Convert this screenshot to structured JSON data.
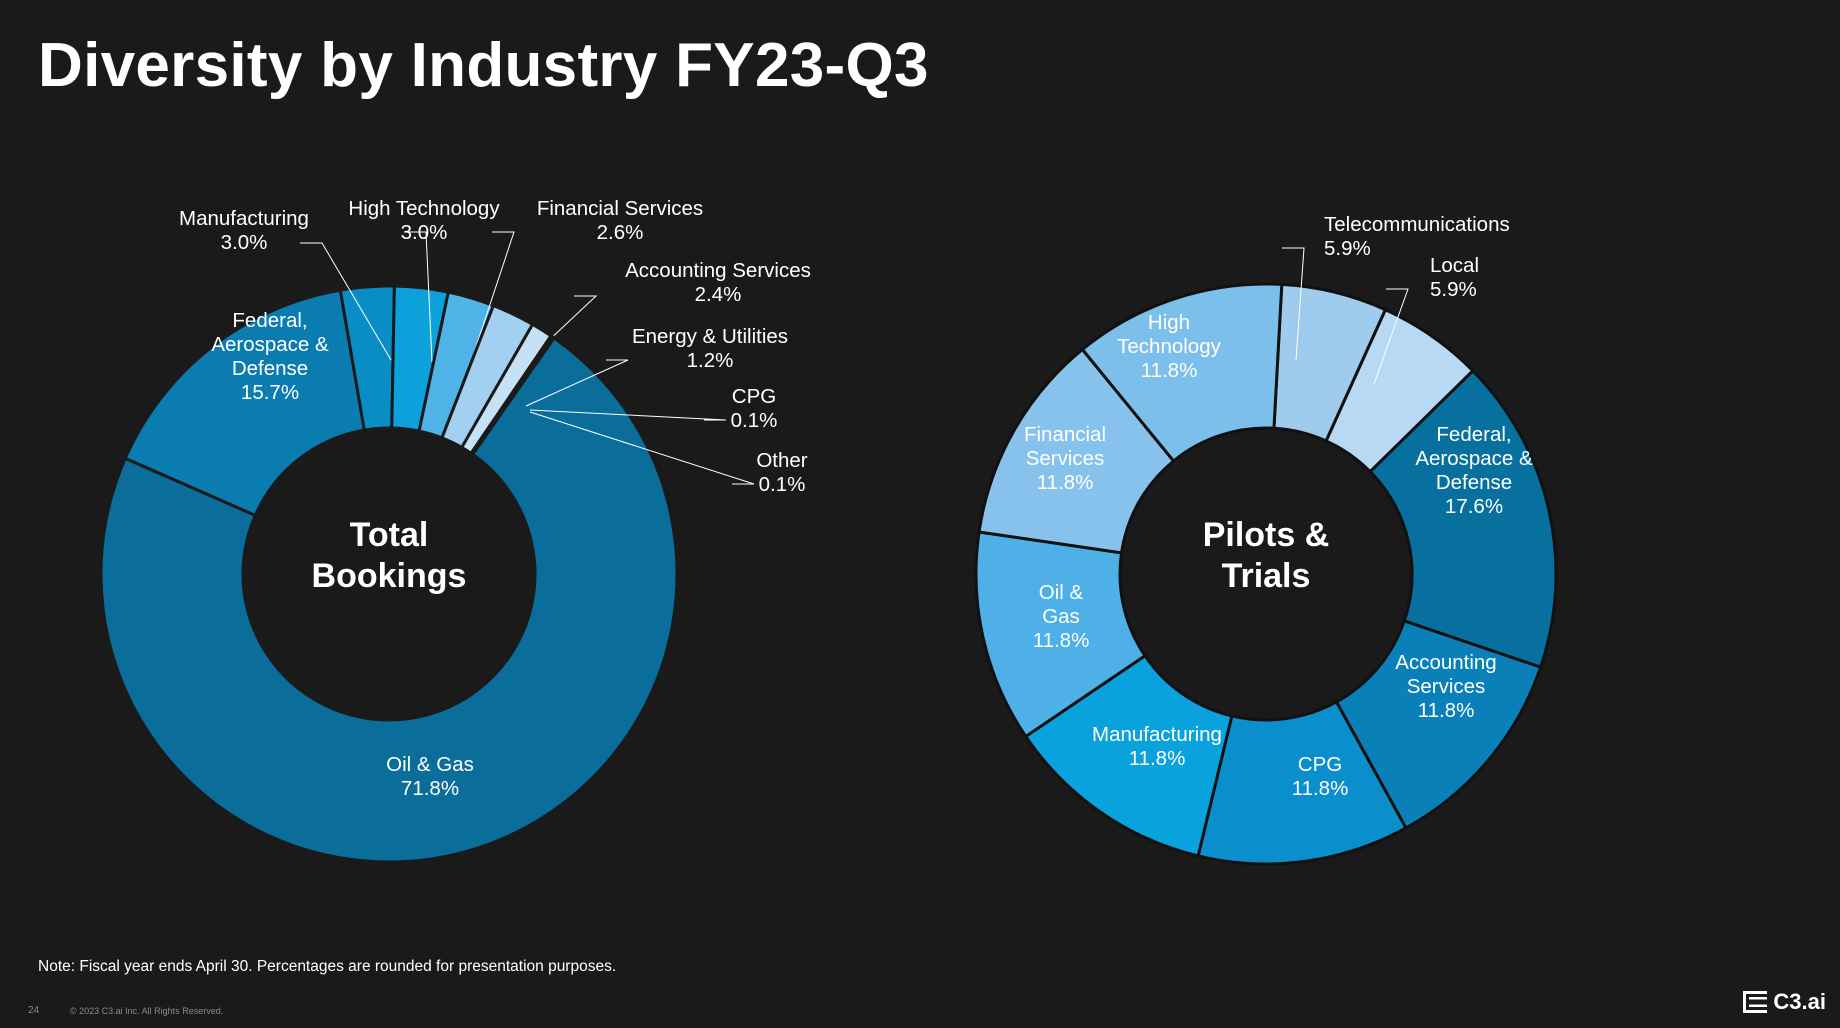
{
  "title": "Diversity by Industry FY23-Q3",
  "chart_data": [
    {
      "type": "pie",
      "center_label": [
        "Total",
        "Bookings"
      ],
      "slices": [
        {
          "label": [
            "Oil & Gas"
          ],
          "pct": "71.8%",
          "value": 71.8,
          "color": "#0a6d9a"
        },
        {
          "label": [
            "Federal,",
            "Aerospace &",
            "Defense"
          ],
          "pct": "15.7%",
          "value": 15.7,
          "color": "#0b7cb0"
        },
        {
          "label": [
            "Manufacturing"
          ],
          "pct": "3.0%",
          "value": 3.0,
          "color": "#0a8cc4"
        },
        {
          "label": [
            "High Technology"
          ],
          "pct": "3.0%",
          "value": 3.0,
          "color": "#0da1dc"
        },
        {
          "label": [
            "Financial Services"
          ],
          "pct": "2.6%",
          "value": 2.6,
          "color": "#4fb3e8"
        },
        {
          "label": [
            "Accounting Services"
          ],
          "pct": "2.4%",
          "value": 2.4,
          "color": "#a3d0f0"
        },
        {
          "label": [
            "Energy & Utilities"
          ],
          "pct": "1.2%",
          "value": 1.2,
          "color": "#c5e1f6"
        },
        {
          "label": [
            "CPG"
          ],
          "pct": "0.1%",
          "value": 0.1,
          "color": "#ddeefa"
        },
        {
          "label": [
            "Other"
          ],
          "pct": "0.1%",
          "value": 0.1,
          "color": "#ffffff"
        }
      ]
    },
    {
      "type": "pie",
      "center_label": [
        "Pilots &",
        "Trials"
      ],
      "slices": [
        {
          "label": [
            "Telecommunications"
          ],
          "pct": "5.9%",
          "value": 5.9,
          "color": "#9fcbed"
        },
        {
          "label": [
            "Local"
          ],
          "pct": "5.9%",
          "value": 5.9,
          "color": "#b7d9f3"
        },
        {
          "label": [
            "Federal,",
            "Aerospace &",
            "Defense"
          ],
          "pct": "17.6%",
          "value": 17.6,
          "color": "#07709e"
        },
        {
          "label": [
            "Accounting",
            "Services"
          ],
          "pct": "11.8%",
          "value": 11.8,
          "color": "#0a80b8"
        },
        {
          "label": [
            "CPG"
          ],
          "pct": "11.8%",
          "value": 11.8,
          "color": "#0b8fcc"
        },
        {
          "label": [
            "Manufacturing"
          ],
          "pct": "11.8%",
          "value": 11.8,
          "color": "#0aa2dc"
        },
        {
          "label": [
            "Oil &",
            "Gas"
          ],
          "pct": "11.8%",
          "value": 11.8,
          "color": "#4eb0e6"
        },
        {
          "label": [
            "Financial",
            "Services"
          ],
          "pct": "11.8%",
          "value": 11.8,
          "color": "#86c2ec"
        },
        {
          "label": [
            "High",
            "Technology"
          ],
          "pct": "11.8%",
          "value": 11.8,
          "color": "#7cbfeb"
        }
      ]
    }
  ],
  "note": "Note: Fiscal year ends April 30. Percentages are rounded for presentation purposes.",
  "footer": {
    "page": "24",
    "copyright": "© 2023 C3.ai Inc. All Rights Reserved."
  },
  "brand": {
    "name": "C3.ai",
    "icon": "c3-logo-icon"
  }
}
